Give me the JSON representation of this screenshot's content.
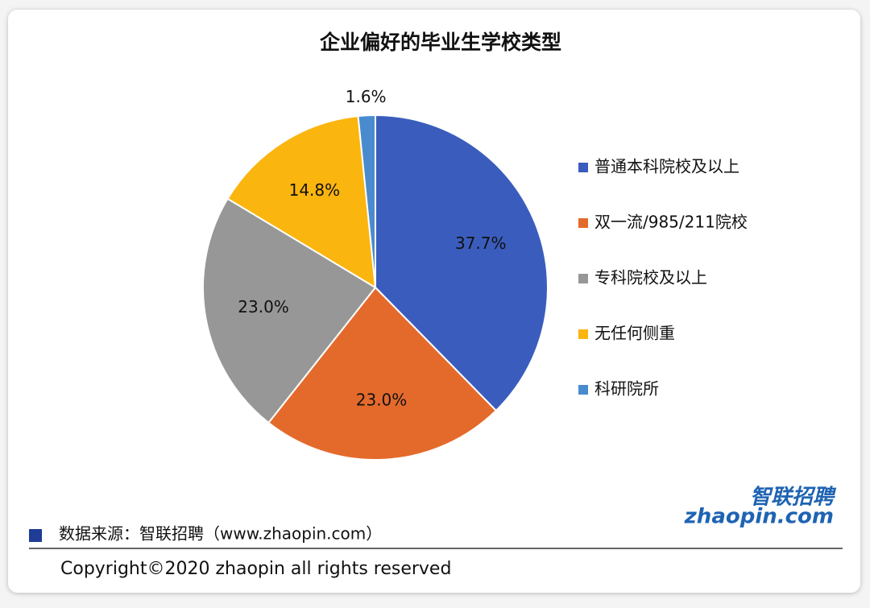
{
  "chart_data": {
    "type": "pie",
    "title": "企业偏好的毕业生学校类型",
    "categories": [
      "普通本科院校及以上",
      "双一流/985/211院校",
      "专科院校及以上",
      "无任何侧重",
      "科研院所"
    ],
    "values": [
      37.7,
      23.0,
      23.0,
      14.8,
      1.6
    ],
    "value_labels": [
      "37.7%",
      "23.0%",
      "23.0%",
      "14.8%",
      "1.6%"
    ],
    "colors": [
      "#3a5dbd",
      "#e46a2b",
      "#979797",
      "#fbb50f",
      "#4a8bd0"
    ],
    "legend": "right",
    "source": "数据来源：智联招聘（www.zhaopin.com）",
    "copyright": "Copyright©2020 zhaopin all rights reserved",
    "logo": {
      "cn": "智联招聘",
      "en": "zhaopin.com"
    }
  }
}
